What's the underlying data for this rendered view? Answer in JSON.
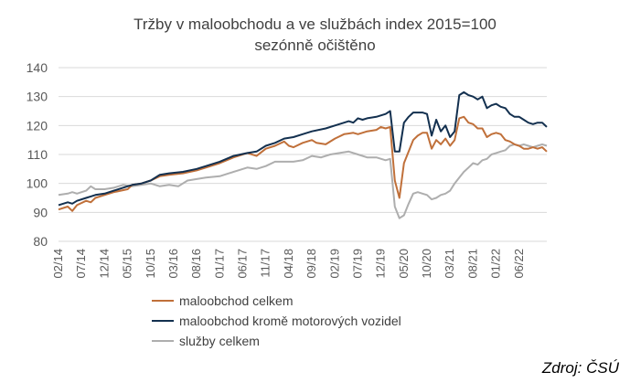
{
  "chart_data": {
    "type": "line",
    "title": "Tržby v maloobchodu a ve službách index 2015=100",
    "subtitle": "sezónně očištěno",
    "source": "Zdroj: ČSÚ",
    "ylim": [
      80,
      140
    ],
    "yticks": [
      80,
      90,
      100,
      110,
      120,
      130,
      140
    ],
    "xrange": [
      "02/14",
      "12/22"
    ],
    "xtick_labels": [
      "02/14",
      "07/14",
      "12/14",
      "05/15",
      "10/15",
      "03/16",
      "08/16",
      "01/17",
      "06/17",
      "11/17",
      "04/18",
      "09/18",
      "02/19",
      "07/19",
      "12/19",
      "05/20",
      "10/20",
      "03/21",
      "08/21",
      "01/22",
      "06/22"
    ],
    "grid": "horizontal",
    "legend_position": "bottom",
    "colors": {
      "maloobchod": "#c0703a",
      "bez_motor": "#13304f",
      "sluzby": "#aeaeae"
    },
    "series": [
      {
        "name": "maloobchod celkem",
        "key": "maloobchod",
        "values": [
          {
            "d": "2014-02",
            "v": 91
          },
          {
            "d": "2014-04",
            "v": 92
          },
          {
            "d": "2014-05",
            "v": 90.5
          },
          {
            "d": "2014-06",
            "v": 92.5
          },
          {
            "d": "2014-08",
            "v": 94
          },
          {
            "d": "2014-09",
            "v": 93.5
          },
          {
            "d": "2014-10",
            "v": 95
          },
          {
            "d": "2014-12",
            "v": 96
          },
          {
            "d": "2015-02",
            "v": 97
          },
          {
            "d": "2015-05",
            "v": 98
          },
          {
            "d": "2015-06",
            "v": 99.5
          },
          {
            "d": "2015-08",
            "v": 100
          },
          {
            "d": "2015-10",
            "v": 101
          },
          {
            "d": "2015-12",
            "v": 102.5
          },
          {
            "d": "2016-02",
            "v": 103
          },
          {
            "d": "2016-05",
            "v": 103.5
          },
          {
            "d": "2016-08",
            "v": 104.5
          },
          {
            "d": "2016-10",
            "v": 105.5
          },
          {
            "d": "2017-01",
            "v": 107
          },
          {
            "d": "2017-04",
            "v": 109
          },
          {
            "d": "2017-07",
            "v": 110.5
          },
          {
            "d": "2017-09",
            "v": 109.5
          },
          {
            "d": "2017-11",
            "v": 112
          },
          {
            "d": "2018-01",
            "v": 113
          },
          {
            "d": "2018-03",
            "v": 114.5
          },
          {
            "d": "2018-04",
            "v": 113
          },
          {
            "d": "2018-05",
            "v": 112.5
          },
          {
            "d": "2018-07",
            "v": 114
          },
          {
            "d": "2018-09",
            "v": 115
          },
          {
            "d": "2018-10",
            "v": 114
          },
          {
            "d": "2018-12",
            "v": 113.5
          },
          {
            "d": "2019-02",
            "v": 115.5
          },
          {
            "d": "2019-04",
            "v": 117
          },
          {
            "d": "2019-06",
            "v": 117.5
          },
          {
            "d": "2019-07",
            "v": 117
          },
          {
            "d": "2019-09",
            "v": 118
          },
          {
            "d": "2019-11",
            "v": 118.5
          },
          {
            "d": "2019-12",
            "v": 119.5
          },
          {
            "d": "2020-01",
            "v": 119
          },
          {
            "d": "2020-02",
            "v": 119.5
          },
          {
            "d": "2020-03",
            "v": 101
          },
          {
            "d": "2020-04",
            "v": 95
          },
          {
            "d": "2020-05",
            "v": 107
          },
          {
            "d": "2020-06",
            "v": 111
          },
          {
            "d": "2020-07",
            "v": 115
          },
          {
            "d": "2020-08",
            "v": 116.5
          },
          {
            "d": "2020-09",
            "v": 117.5
          },
          {
            "d": "2020-10",
            "v": 117.5
          },
          {
            "d": "2020-11",
            "v": 112
          },
          {
            "d": "2020-12",
            "v": 115
          },
          {
            "d": "2021-01",
            "v": 113.5
          },
          {
            "d": "2021-02",
            "v": 115.5
          },
          {
            "d": "2021-03",
            "v": 113
          },
          {
            "d": "2021-04",
            "v": 115
          },
          {
            "d": "2021-05",
            "v": 122.5
          },
          {
            "d": "2021-06",
            "v": 123
          },
          {
            "d": "2021-07",
            "v": 121
          },
          {
            "d": "2021-08",
            "v": 120.5
          },
          {
            "d": "2021-09",
            "v": 119
          },
          {
            "d": "2021-10",
            "v": 119
          },
          {
            "d": "2021-11",
            "v": 116
          },
          {
            "d": "2021-12",
            "v": 117
          },
          {
            "d": "2022-01",
            "v": 117.5
          },
          {
            "d": "2022-02",
            "v": 117
          },
          {
            "d": "2022-03",
            "v": 115
          },
          {
            "d": "2022-04",
            "v": 114.5
          },
          {
            "d": "2022-05",
            "v": 113.5
          },
          {
            "d": "2022-06",
            "v": 113
          },
          {
            "d": "2022-07",
            "v": 112
          },
          {
            "d": "2022-08",
            "v": 112
          },
          {
            "d": "2022-09",
            "v": 112.5
          },
          {
            "d": "2022-10",
            "v": 112
          },
          {
            "d": "2022-11",
            "v": 112.5
          },
          {
            "d": "2022-12",
            "v": 111
          }
        ]
      },
      {
        "name": "maloobchod kromě motorových vozidel",
        "key": "bez_motor",
        "values": [
          {
            "d": "2014-02",
            "v": 92.5
          },
          {
            "d": "2014-04",
            "v": 93.5
          },
          {
            "d": "2014-05",
            "v": 93
          },
          {
            "d": "2014-06",
            "v": 94
          },
          {
            "d": "2014-08",
            "v": 95
          },
          {
            "d": "2014-09",
            "v": 95.5
          },
          {
            "d": "2014-10",
            "v": 96
          },
          {
            "d": "2014-12",
            "v": 96.5
          },
          {
            "d": "2015-02",
            "v": 97.5
          },
          {
            "d": "2015-05",
            "v": 99
          },
          {
            "d": "2015-06",
            "v": 99.5
          },
          {
            "d": "2015-08",
            "v": 100
          },
          {
            "d": "2015-10",
            "v": 101
          },
          {
            "d": "2015-12",
            "v": 103
          },
          {
            "d": "2016-02",
            "v": 103.5
          },
          {
            "d": "2016-05",
            "v": 104
          },
          {
            "d": "2016-08",
            "v": 105
          },
          {
            "d": "2016-10",
            "v": 106
          },
          {
            "d": "2017-01",
            "v": 107.5
          },
          {
            "d": "2017-04",
            "v": 109.5
          },
          {
            "d": "2017-07",
            "v": 110.5
          },
          {
            "d": "2017-09",
            "v": 111
          },
          {
            "d": "2017-11",
            "v": 113
          },
          {
            "d": "2018-01",
            "v": 114
          },
          {
            "d": "2018-03",
            "v": 115.5
          },
          {
            "d": "2018-05",
            "v": 116
          },
          {
            "d": "2018-07",
            "v": 117
          },
          {
            "d": "2018-09",
            "v": 118
          },
          {
            "d": "2018-12",
            "v": 119
          },
          {
            "d": "2019-02",
            "v": 120
          },
          {
            "d": "2019-04",
            "v": 121
          },
          {
            "d": "2019-05",
            "v": 121.5
          },
          {
            "d": "2019-06",
            "v": 121
          },
          {
            "d": "2019-07",
            "v": 122.5
          },
          {
            "d": "2019-08",
            "v": 122
          },
          {
            "d": "2019-09",
            "v": 122.5
          },
          {
            "d": "2019-11",
            "v": 123
          },
          {
            "d": "2020-01",
            "v": 124
          },
          {
            "d": "2020-02",
            "v": 125
          },
          {
            "d": "2020-03",
            "v": 111
          },
          {
            "d": "2020-04",
            "v": 111
          },
          {
            "d": "2020-05",
            "v": 121
          },
          {
            "d": "2020-06",
            "v": 123
          },
          {
            "d": "2020-07",
            "v": 124.5
          },
          {
            "d": "2020-08",
            "v": 124.5
          },
          {
            "d": "2020-09",
            "v": 124.5
          },
          {
            "d": "2020-10",
            "v": 124
          },
          {
            "d": "2020-11",
            "v": 116.5
          },
          {
            "d": "2020-12",
            "v": 122
          },
          {
            "d": "2021-01",
            "v": 118
          },
          {
            "d": "2021-02",
            "v": 120
          },
          {
            "d": "2021-03",
            "v": 116
          },
          {
            "d": "2021-04",
            "v": 118
          },
          {
            "d": "2021-05",
            "v": 130.5
          },
          {
            "d": "2021-06",
            "v": 131.5
          },
          {
            "d": "2021-07",
            "v": 130.5
          },
          {
            "d": "2021-08",
            "v": 130
          },
          {
            "d": "2021-09",
            "v": 129
          },
          {
            "d": "2021-10",
            "v": 130
          },
          {
            "d": "2021-11",
            "v": 126
          },
          {
            "d": "2021-12",
            "v": 127
          },
          {
            "d": "2022-01",
            "v": 127.5
          },
          {
            "d": "2022-02",
            "v": 126.5
          },
          {
            "d": "2022-03",
            "v": 126
          },
          {
            "d": "2022-04",
            "v": 124
          },
          {
            "d": "2022-05",
            "v": 123
          },
          {
            "d": "2022-06",
            "v": 123
          },
          {
            "d": "2022-07",
            "v": 122
          },
          {
            "d": "2022-08",
            "v": 121
          },
          {
            "d": "2022-09",
            "v": 120.5
          },
          {
            "d": "2022-10",
            "v": 121
          },
          {
            "d": "2022-11",
            "v": 121
          },
          {
            "d": "2022-12",
            "v": 119.5
          }
        ]
      },
      {
        "name": "služby celkem",
        "key": "sluzby",
        "values": [
          {
            "d": "2014-02",
            "v": 96
          },
          {
            "d": "2014-04",
            "v": 96.5
          },
          {
            "d": "2014-05",
            "v": 97
          },
          {
            "d": "2014-06",
            "v": 96.5
          },
          {
            "d": "2014-08",
            "v": 97.5
          },
          {
            "d": "2014-09",
            "v": 99
          },
          {
            "d": "2014-10",
            "v": 98
          },
          {
            "d": "2014-12",
            "v": 98
          },
          {
            "d": "2015-02",
            "v": 98.5
          },
          {
            "d": "2015-04",
            "v": 99.5
          },
          {
            "d": "2015-06",
            "v": 99
          },
          {
            "d": "2015-08",
            "v": 99.5
          },
          {
            "d": "2015-10",
            "v": 100
          },
          {
            "d": "2015-12",
            "v": 99
          },
          {
            "d": "2016-02",
            "v": 99.5
          },
          {
            "d": "2016-04",
            "v": 99
          },
          {
            "d": "2016-06",
            "v": 101
          },
          {
            "d": "2016-08",
            "v": 101.5
          },
          {
            "d": "2016-10",
            "v": 102
          },
          {
            "d": "2017-01",
            "v": 102.5
          },
          {
            "d": "2017-03",
            "v": 103.5
          },
          {
            "d": "2017-05",
            "v": 104.5
          },
          {
            "d": "2017-07",
            "v": 105.5
          },
          {
            "d": "2017-09",
            "v": 105
          },
          {
            "d": "2017-11",
            "v": 106
          },
          {
            "d": "2018-01",
            "v": 107.5
          },
          {
            "d": "2018-03",
            "v": 107.5
          },
          {
            "d": "2018-05",
            "v": 107.5
          },
          {
            "d": "2018-07",
            "v": 108
          },
          {
            "d": "2018-09",
            "v": 109.5
          },
          {
            "d": "2018-11",
            "v": 109
          },
          {
            "d": "2019-01",
            "v": 110
          },
          {
            "d": "2019-03",
            "v": 110.5
          },
          {
            "d": "2019-05",
            "v": 111
          },
          {
            "d": "2019-07",
            "v": 110
          },
          {
            "d": "2019-09",
            "v": 109
          },
          {
            "d": "2019-11",
            "v": 109
          },
          {
            "d": "2020-01",
            "v": 108
          },
          {
            "d": "2020-02",
            "v": 108.5
          },
          {
            "d": "2020-03",
            "v": 92
          },
          {
            "d": "2020-04",
            "v": 88
          },
          {
            "d": "2020-05",
            "v": 89
          },
          {
            "d": "2020-06",
            "v": 93
          },
          {
            "d": "2020-07",
            "v": 96.5
          },
          {
            "d": "2020-08",
            "v": 97
          },
          {
            "d": "2020-09",
            "v": 96.5
          },
          {
            "d": "2020-10",
            "v": 96
          },
          {
            "d": "2020-11",
            "v": 94.5
          },
          {
            "d": "2020-12",
            "v": 95
          },
          {
            "d": "2021-01",
            "v": 96
          },
          {
            "d": "2021-02",
            "v": 96.5
          },
          {
            "d": "2021-03",
            "v": 97.5
          },
          {
            "d": "2021-04",
            "v": 100
          },
          {
            "d": "2021-05",
            "v": 102
          },
          {
            "d": "2021-06",
            "v": 104
          },
          {
            "d": "2021-07",
            "v": 105.5
          },
          {
            "d": "2021-08",
            "v": 107
          },
          {
            "d": "2021-09",
            "v": 106.5
          },
          {
            "d": "2021-10",
            "v": 108
          },
          {
            "d": "2021-11",
            "v": 108.5
          },
          {
            "d": "2021-12",
            "v": 110
          },
          {
            "d": "2022-01",
            "v": 110.5
          },
          {
            "d": "2022-02",
            "v": 111
          },
          {
            "d": "2022-03",
            "v": 111.5
          },
          {
            "d": "2022-04",
            "v": 113
          },
          {
            "d": "2022-05",
            "v": 113.5
          },
          {
            "d": "2022-06",
            "v": 113
          },
          {
            "d": "2022-07",
            "v": 113.5
          },
          {
            "d": "2022-08",
            "v": 113
          },
          {
            "d": "2022-09",
            "v": 112.5
          },
          {
            "d": "2022-10",
            "v": 113
          },
          {
            "d": "2022-11",
            "v": 113.5
          },
          {
            "d": "2022-12",
            "v": 113
          }
        ]
      }
    ]
  }
}
